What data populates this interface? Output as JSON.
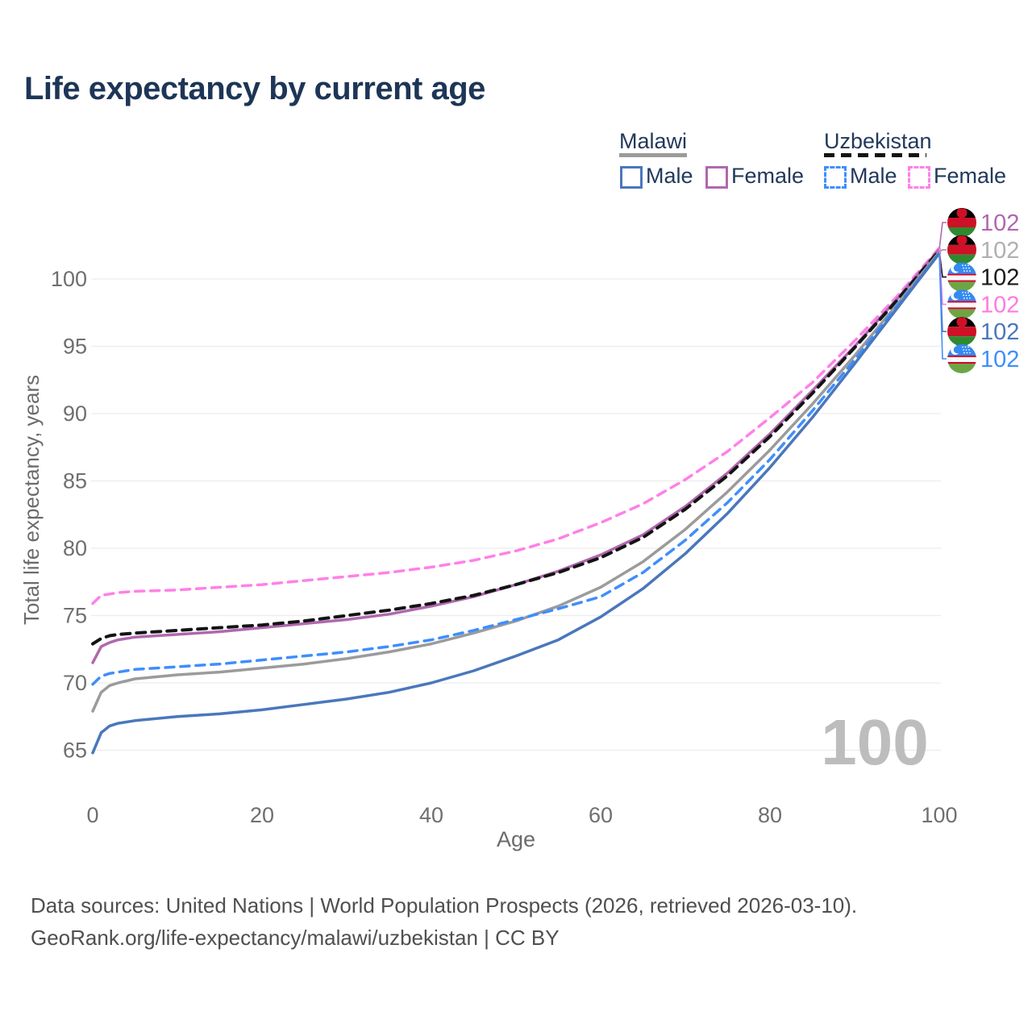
{
  "title": "Life expectancy by current age",
  "legend": {
    "groups": [
      {
        "label": "Malawi",
        "line_style": "solid",
        "line_color": "#9b9b9b",
        "items": [
          {
            "label": "Male",
            "color": "#4a77bc",
            "dashed": false
          },
          {
            "label": "Female",
            "color": "#b068ae",
            "dashed": false
          }
        ]
      },
      {
        "label": "Uzbekistan",
        "line_style": "dashed",
        "line_color": "#141414",
        "items": [
          {
            "label": "Male",
            "color": "#3f8efc",
            "dashed": true
          },
          {
            "label": "Female",
            "color": "#ff80e8",
            "dashed": true
          }
        ]
      }
    ]
  },
  "watermark": "100",
  "footer": {
    "line1": "Data sources: United Nations | World Population Prospects (2026, retrieved 2026-03-10).",
    "line2": "GeoRank.org/life-expectancy/malawi/uzbekistan | CC BY"
  },
  "chart_data": {
    "type": "line",
    "title": "Life expectancy by current age",
    "xlabel": "Age",
    "ylabel": "Total life expectancy, years",
    "xlim": [
      0,
      100
    ],
    "ylim": [
      63,
      103.5
    ],
    "x_ticks": [
      0,
      20,
      40,
      60,
      80,
      100
    ],
    "y_ticks": [
      65,
      70,
      75,
      80,
      85,
      90,
      95,
      100
    ],
    "grid": true,
    "legend_position": "top-right",
    "x": [
      0,
      1,
      2,
      3,
      5,
      10,
      15,
      20,
      25,
      30,
      35,
      40,
      45,
      50,
      55,
      60,
      65,
      70,
      75,
      80,
      85,
      90,
      95,
      100
    ],
    "series": [
      {
        "name": "Uzbekistan Female",
        "country": "uzbekistan",
        "color": "#ff80e8",
        "dashed": true,
        "values": [
          75.9,
          76.5,
          76.6,
          76.7,
          76.8,
          76.9,
          77.1,
          77.3,
          77.6,
          77.9,
          78.2,
          78.6,
          79.1,
          79.8,
          80.7,
          81.9,
          83.3,
          85.1,
          87.2,
          89.7,
          92.3,
          95.4,
          98.7,
          102.3
        ]
      },
      {
        "name": "Malawi Female",
        "country": "malawi",
        "color": "#b068ae",
        "dashed": false,
        "values": [
          71.5,
          72.7,
          73.0,
          73.2,
          73.4,
          73.6,
          73.8,
          74.1,
          74.4,
          74.7,
          75.1,
          75.7,
          76.4,
          77.3,
          78.3,
          79.5,
          81.0,
          83.1,
          85.6,
          88.5,
          91.7,
          95.0,
          98.5,
          102.2
        ]
      },
      {
        "name": "Uzbekistan",
        "country": "uzbekistan",
        "color": "#141414",
        "dashed": true,
        "values": [
          72.9,
          73.3,
          73.5,
          73.6,
          73.7,
          73.9,
          74.1,
          74.3,
          74.6,
          75.0,
          75.4,
          75.9,
          76.5,
          77.3,
          78.2,
          79.3,
          80.8,
          82.9,
          85.4,
          88.3,
          91.5,
          94.9,
          98.4,
          102.1
        ]
      },
      {
        "name": "Malawi",
        "country": "malawi",
        "color": "#9b9b9b",
        "dashed": false,
        "values": [
          67.9,
          69.3,
          69.8,
          70.0,
          70.3,
          70.6,
          70.8,
          71.1,
          71.4,
          71.8,
          72.3,
          72.9,
          73.7,
          74.6,
          75.7,
          77.1,
          79.0,
          81.4,
          84.2,
          87.3,
          90.7,
          94.3,
          98.1,
          102.0
        ]
      },
      {
        "name": "Uzbekistan Male",
        "country": "uzbekistan",
        "color": "#3f8efc",
        "dashed": true,
        "values": [
          69.9,
          70.5,
          70.7,
          70.8,
          71.0,
          71.2,
          71.4,
          71.7,
          72.0,
          72.3,
          72.7,
          73.2,
          73.9,
          74.7,
          75.5,
          76.4,
          78.2,
          80.6,
          83.4,
          86.6,
          90.2,
          94.0,
          98.0,
          101.9
        ]
      },
      {
        "name": "Malawi Male",
        "country": "malawi",
        "color": "#4a77bc",
        "dashed": false,
        "values": [
          64.8,
          66.3,
          66.8,
          67.0,
          67.2,
          67.5,
          67.7,
          68.0,
          68.4,
          68.8,
          69.3,
          70.0,
          70.9,
          72.0,
          73.2,
          74.9,
          77.0,
          79.6,
          82.6,
          86.0,
          89.7,
          93.7,
          97.8,
          101.9
        ]
      }
    ],
    "end_labels": [
      {
        "text": "102",
        "color": "#b068ae",
        "flag": "malawi",
        "series": "Malawi Female"
      },
      {
        "text": "102",
        "color": "#b0b0b0",
        "flag": "malawi",
        "series": "Malawi"
      },
      {
        "text": "102",
        "color": "#1a1a1a",
        "flag": "uzbekistan",
        "series": "Uzbekistan"
      },
      {
        "text": "102",
        "color": "#ff7ae1",
        "flag": "uzbekistan",
        "series": "Uzbekistan Female"
      },
      {
        "text": "102",
        "color": "#4a77bc",
        "flag": "malawi",
        "series": "Malawi Male"
      },
      {
        "text": "102",
        "color": "#3f8efc",
        "flag": "uzbekistan",
        "series": "Uzbekistan Male"
      }
    ]
  },
  "flag_colors": {
    "malawi": {
      "black": "#000000",
      "red": "#ce1126",
      "green": "#2f8a2f"
    },
    "uzbekistan": {
      "blue": "#338af3",
      "white": "#f6f9fc",
      "red": "#d80027",
      "green": "#6da544"
    }
  }
}
